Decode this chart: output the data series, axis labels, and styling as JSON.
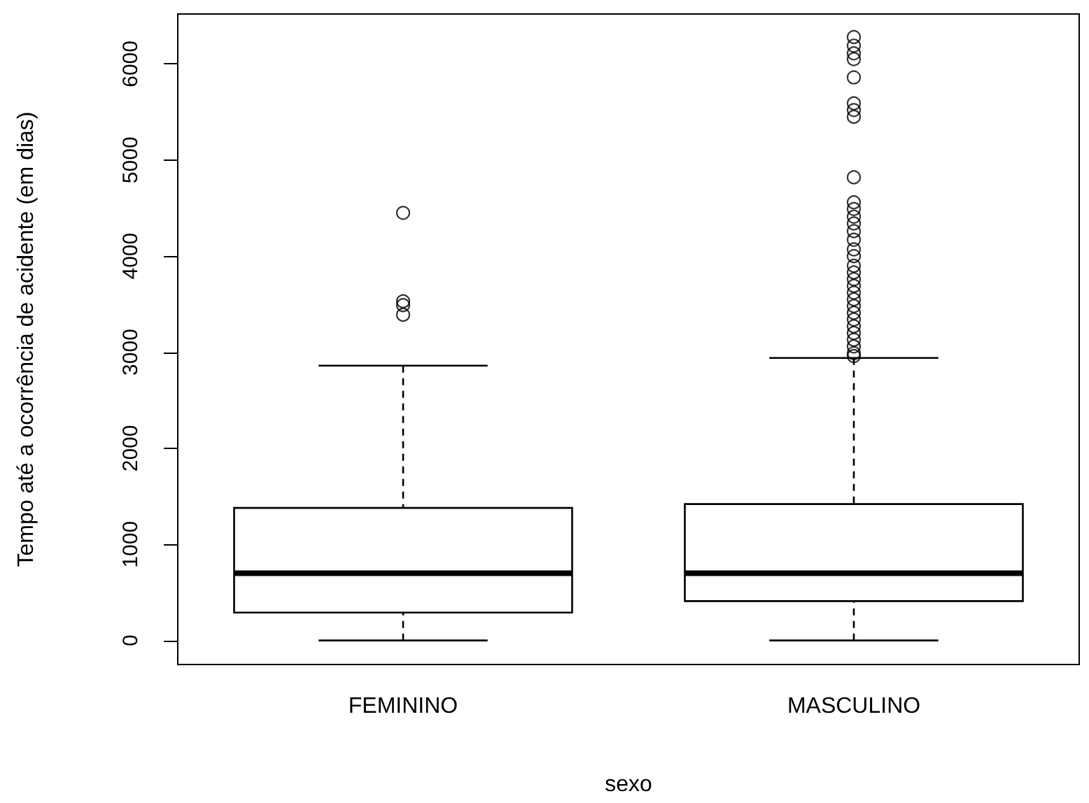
{
  "chart_data": {
    "type": "box",
    "xlabel": "sexo",
    "ylabel": "Tempo até a ocorrência de acidente (em dias)",
    "categories": [
      "FEMININO",
      "MASCULINO"
    ],
    "boxes": [
      {
        "low": 0,
        "q1": 290,
        "median": 700,
        "q3": 1380,
        "high": 2860,
        "outliers": [
          4450,
          3530,
          3490,
          3390
        ]
      },
      {
        "low": 0,
        "q1": 410,
        "median": 700,
        "q3": 1420,
        "high": 2940,
        "outliers": [
          6280,
          6190,
          6110,
          6050,
          5860,
          5590,
          5520,
          5450,
          4820,
          4560,
          4490,
          4410,
          4340,
          4260,
          4170,
          4070,
          4000,
          3900,
          3830,
          3760,
          3690,
          3620,
          3550,
          3480,
          3410,
          3340,
          3270,
          3200,
          3130,
          3060,
          2990,
          2960
        ]
      }
    ],
    "color": "#000000",
    "marker": "circle",
    "grid": false,
    "ylim": [
      -250,
      6520
    ],
    "yticks": [
      0,
      1000,
      2000,
      3000,
      4000,
      5000,
      6000
    ]
  }
}
